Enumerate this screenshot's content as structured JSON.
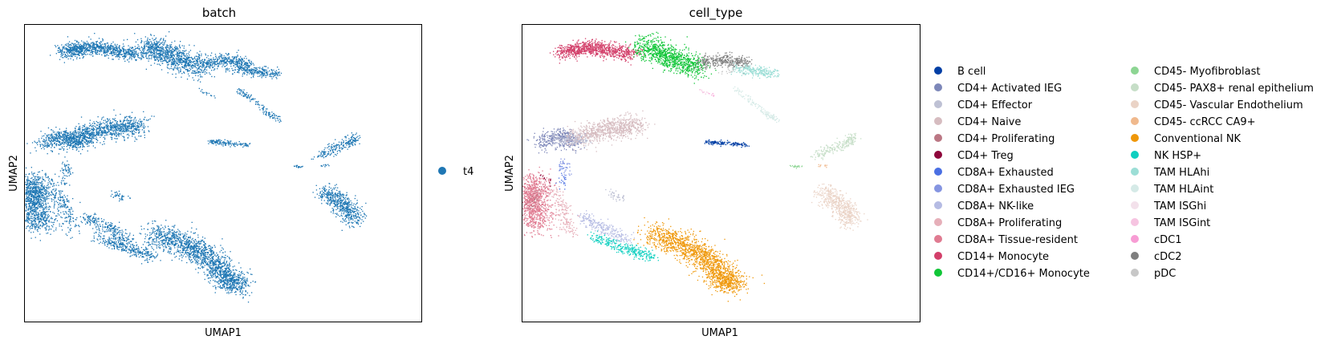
{
  "chart_data": [
    {
      "type": "scatter",
      "title": "batch",
      "xlabel": "UMAP1",
      "ylabel": "UMAP2",
      "grid": false,
      "legend_placement": "right",
      "series": [
        {
          "name": "t4",
          "color": "#1f77b4"
        }
      ]
    },
    {
      "type": "scatter",
      "title": "cell_type",
      "xlabel": "UMAP1",
      "ylabel": "UMAP2",
      "grid": false,
      "legend_placement": "right",
      "series": [
        {
          "name": "B cell",
          "color": "#023fa5"
        },
        {
          "name": "CD4+ Activated IEG",
          "color": "#7d87b9"
        },
        {
          "name": "CD4+ Effector",
          "color": "#bec1d4"
        },
        {
          "name": "CD4+ Naive",
          "color": "#d6bcc0"
        },
        {
          "name": "CD4+ Proliferating",
          "color": "#bb7784"
        },
        {
          "name": "CD4+ Treg",
          "color": "#8e063b"
        },
        {
          "name": "CD8A+ Exhausted",
          "color": "#4a6fe3"
        },
        {
          "name": "CD8A+ Exhausted IEG",
          "color": "#8595e1"
        },
        {
          "name": "CD8A+ NK-like",
          "color": "#b5bbe3"
        },
        {
          "name": "CD8A+ Proliferating",
          "color": "#e6afb9"
        },
        {
          "name": "CD8A+ Tissue-resident",
          "color": "#e07b91"
        },
        {
          "name": "CD14+ Monocyte",
          "color": "#d33f6a"
        },
        {
          "name": "CD14+/CD16+ Monocyte",
          "color": "#11c638"
        },
        {
          "name": "CD45- Myofibroblast",
          "color": "#8dd593"
        },
        {
          "name": "CD45- PAX8+ renal epithelium",
          "color": "#c6dec7"
        },
        {
          "name": "CD45- Vascular Endothelium",
          "color": "#ead3c6"
        },
        {
          "name": "CD45- ccRCC CA9+",
          "color": "#f0b98d"
        },
        {
          "name": "Conventional NK",
          "color": "#ef9708"
        },
        {
          "name": "NK HSP+",
          "color": "#0fcfc0"
        },
        {
          "name": "TAM HLAhi",
          "color": "#9cded6"
        },
        {
          "name": "TAM HLAint",
          "color": "#d5eae7"
        },
        {
          "name": "TAM ISGhi",
          "color": "#f3e1eb"
        },
        {
          "name": "TAM ISGint",
          "color": "#f6c4e1"
        },
        {
          "name": "cDC1",
          "color": "#f79cd4"
        },
        {
          "name": "cDC2",
          "color": "#7f7f7f"
        },
        {
          "name": "pDC",
          "color": "#c7c7c7"
        }
      ]
    }
  ]
}
